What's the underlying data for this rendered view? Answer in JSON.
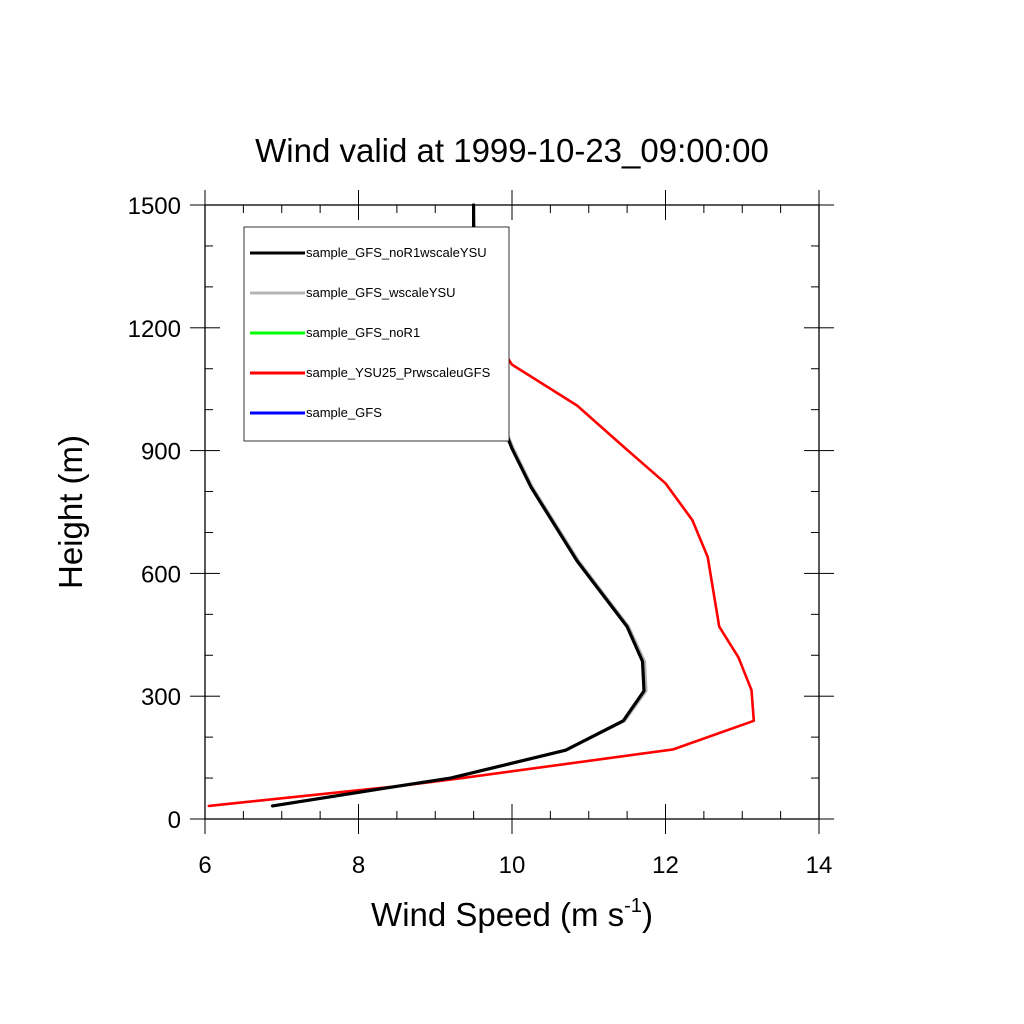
{
  "chart_data": {
    "type": "line",
    "title": "Wind valid at 1999-10-23_09:00:00",
    "xlabel": {
      "main": "Wind Speed (m s",
      "sup": "-1",
      "tail": ")"
    },
    "ylabel": "Height (m)",
    "xlim": [
      6,
      14
    ],
    "ylim": [
      0,
      1500
    ],
    "xticks": [
      6,
      8,
      10,
      12,
      14
    ],
    "yticks": [
      0,
      300,
      600,
      900,
      1200,
      1500
    ],
    "legend_position": "top-left",
    "series": [
      {
        "name": "sample_GFS_noR1wscaleYSU",
        "color": "#000000",
        "x": [
          6.88,
          8.5,
          9.2,
          10.7,
          11.45,
          11.72,
          11.7,
          11.5,
          10.85,
          10.25,
          10.0,
          9.8,
          9.65,
          9.58,
          9.55,
          9.52,
          9.5,
          9.5
        ],
        "y": [
          32,
          80,
          100,
          168,
          240,
          313,
          385,
          470,
          630,
          810,
          905,
          1000,
          1120,
          1215,
          1300,
          1385,
          1450,
          1500
        ]
      },
      {
        "name": "sample_GFS_wscaleYSU",
        "color": "#b4b4b4",
        "x": [
          6.88,
          8.5,
          9.2,
          10.7,
          11.47,
          11.75,
          11.73,
          11.52,
          10.87,
          10.27,
          10.02,
          9.81,
          9.66,
          9.59,
          9.56,
          9.53,
          9.51,
          9.5
        ],
        "y": [
          32,
          80,
          100,
          168,
          240,
          313,
          385,
          470,
          630,
          810,
          905,
          1000,
          1120,
          1215,
          1300,
          1385,
          1450,
          1500
        ]
      },
      {
        "name": "sample_GFS_noR1",
        "color": "#00ff00",
        "x": [
          6.88,
          8.5,
          9.2,
          10.7,
          11.45,
          11.72,
          11.7,
          11.5,
          10.85,
          10.25,
          10.0,
          9.8,
          9.65,
          9.58,
          9.55,
          9.52,
          9.5,
          9.5
        ],
        "y": [
          32,
          80,
          100,
          168,
          240,
          313,
          385,
          470,
          630,
          810,
          905,
          1000,
          1120,
          1215,
          1300,
          1385,
          1450,
          1500
        ]
      },
      {
        "name": "sample_YSU25_PrwscaleuGFS",
        "color": "#ff0000",
        "x": [
          6.05,
          8.5,
          9.35,
          12.1,
          13.15,
          13.12,
          12.95,
          12.7,
          12.55,
          12.35,
          12.0,
          11.45,
          10.85,
          10.0,
          9.65,
          9.5,
          9.5,
          9.5
        ],
        "y": [
          32,
          80,
          100,
          170,
          240,
          315,
          395,
          470,
          640,
          730,
          820,
          910,
          1010,
          1110,
          1210,
          1300,
          1400,
          1500
        ]
      },
      {
        "name": "sample_GFS",
        "color": "#0000ff",
        "x": [
          6.88,
          8.5,
          9.2,
          10.7,
          11.46,
          11.73,
          11.71,
          11.51,
          10.86,
          10.26,
          10.01,
          9.8,
          9.65,
          9.58,
          9.55,
          9.52,
          9.5,
          9.5
        ],
        "y": [
          32,
          80,
          100,
          168,
          240,
          313,
          385,
          470,
          630,
          810,
          905,
          1000,
          1120,
          1215,
          1300,
          1385,
          1450,
          1500
        ]
      }
    ]
  }
}
